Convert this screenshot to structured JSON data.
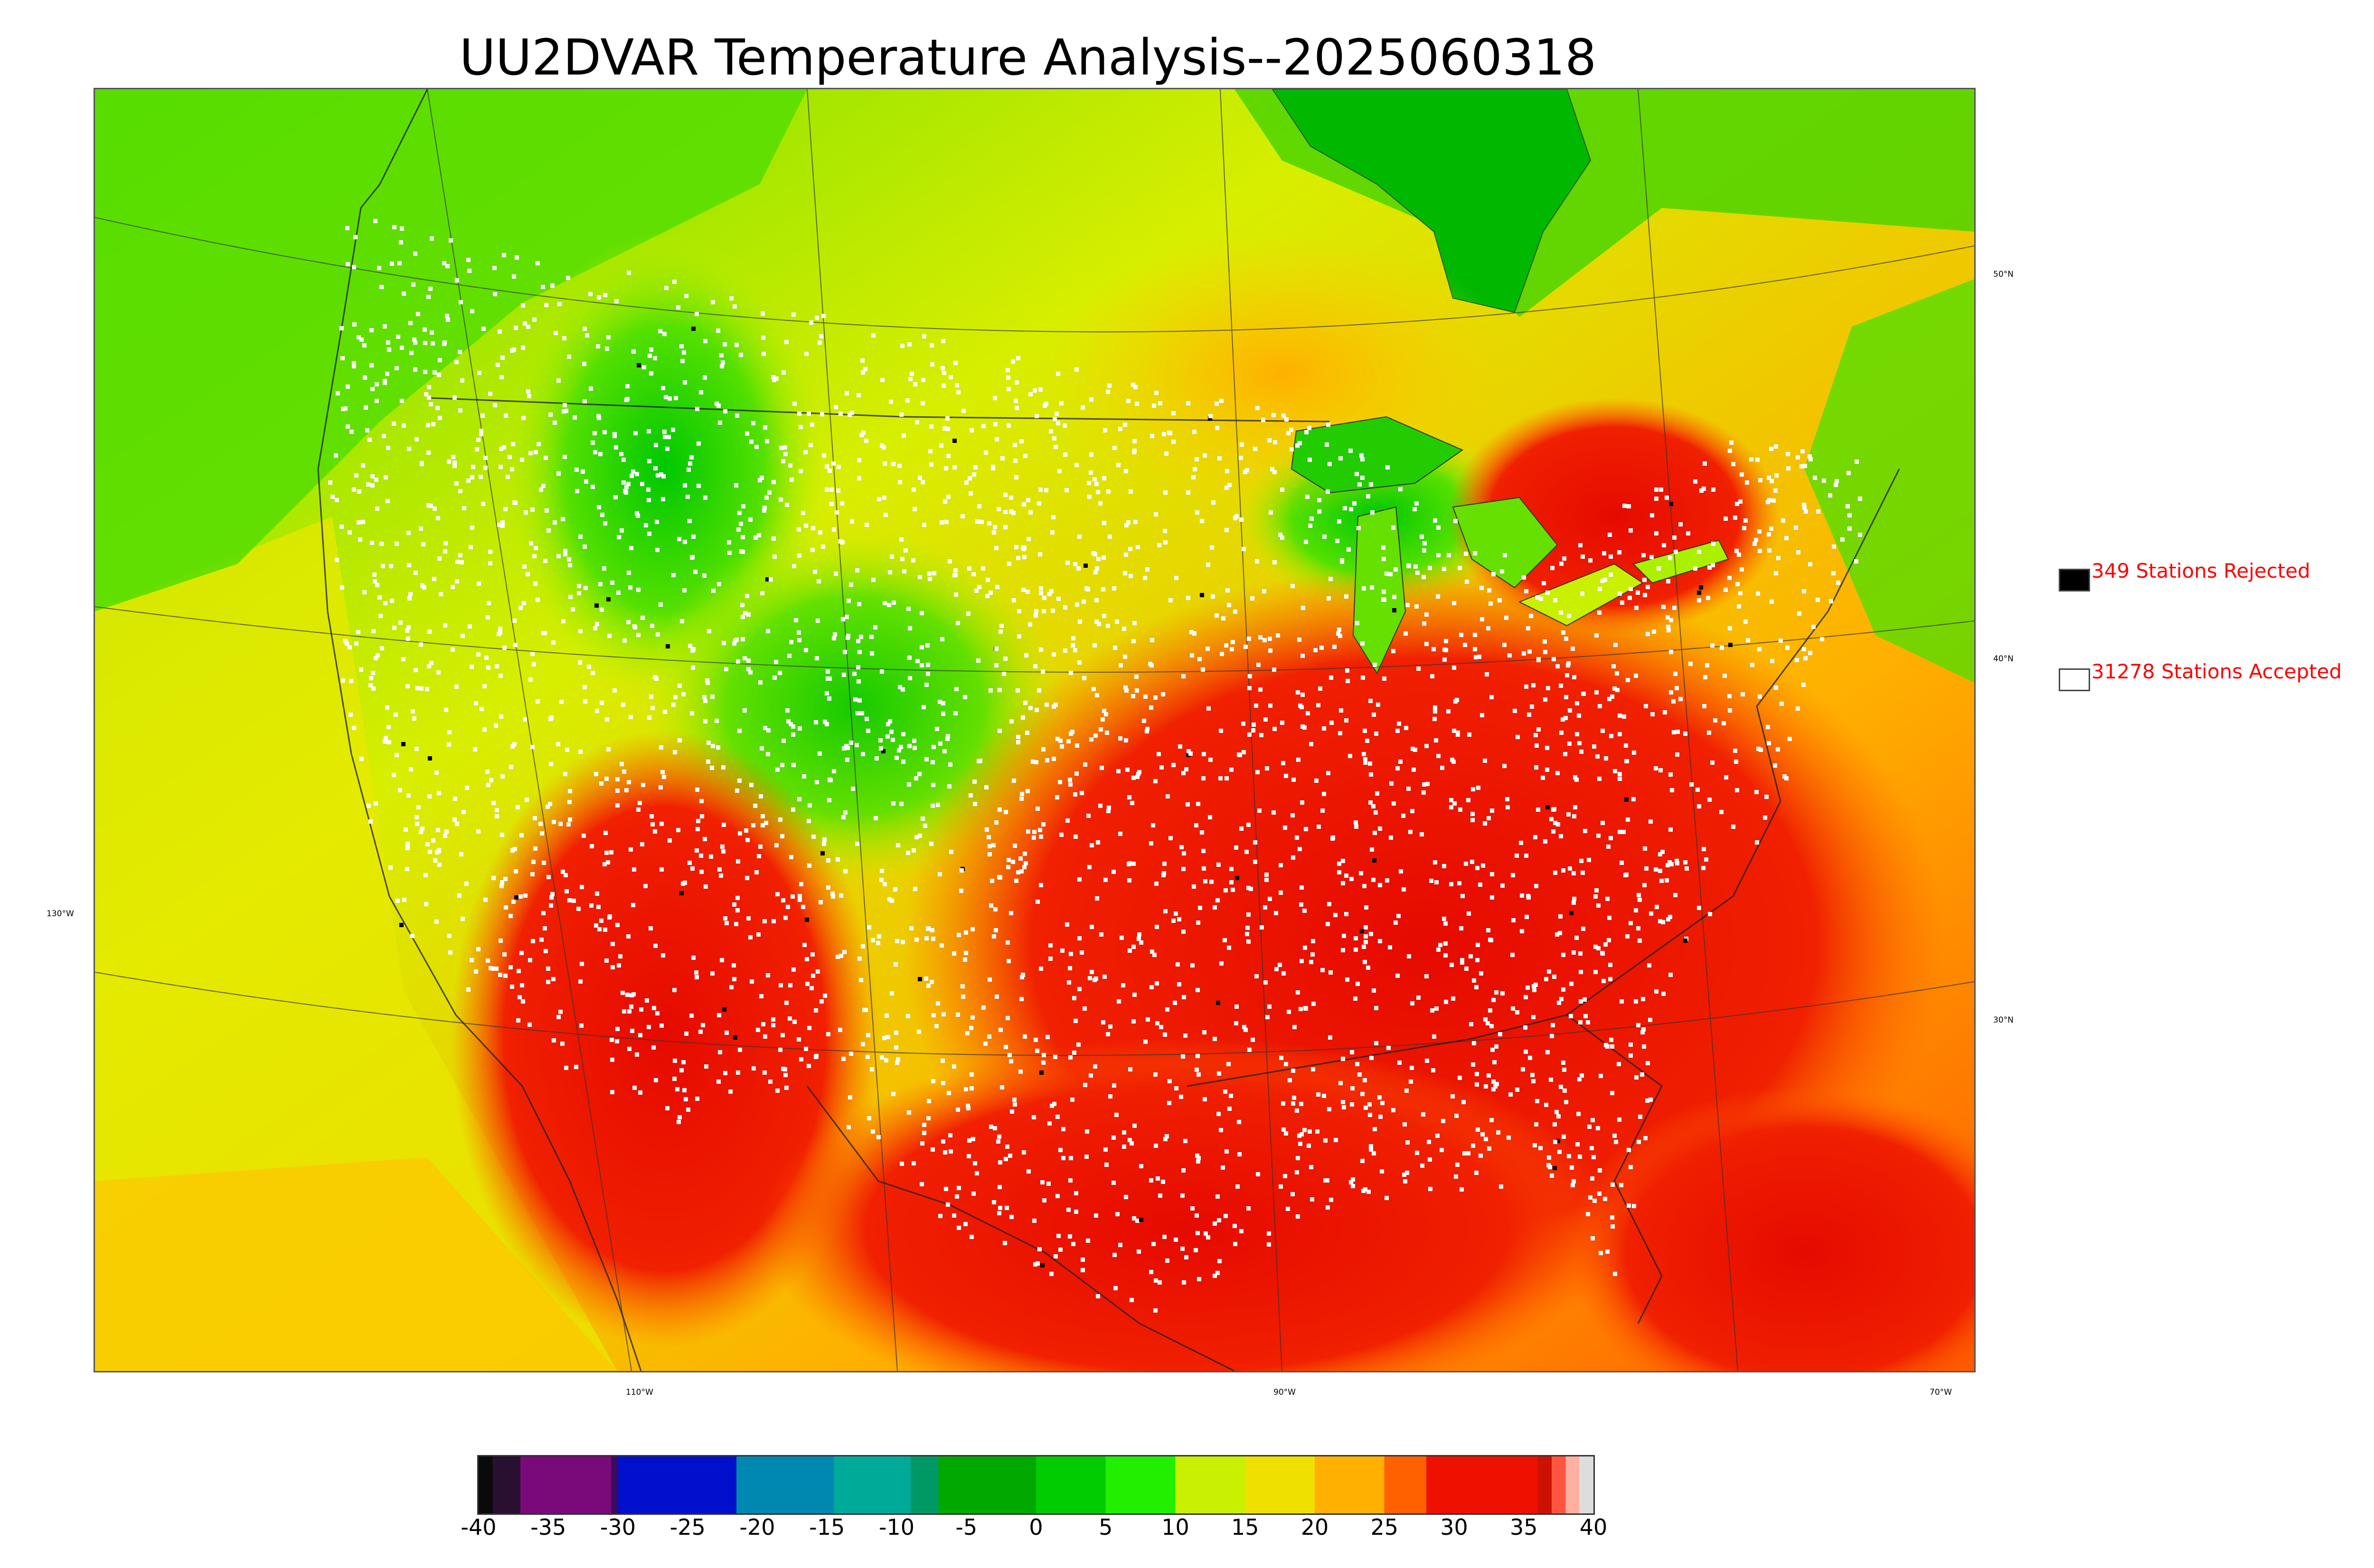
{
  "title": "UU2DVAR Temperature Analysis--2025060318",
  "map": {
    "latitude_labels": [
      "50°N",
      "40°N",
      "30°N"
    ],
    "longitude_labels": [
      "130°W",
      "110°W",
      "90°W",
      "70°W"
    ]
  },
  "legend": {
    "rejected": {
      "label": "349 Stations Rejected",
      "color": "#000000"
    },
    "accepted": {
      "label": "31278 Stations Accepted",
      "color": "#ffffff"
    },
    "text_color": "#ff0000"
  },
  "colorbar": {
    "min": -40,
    "max": 40,
    "ticks": [
      "-40",
      "-35",
      "-30",
      "-25",
      "-20",
      "-15",
      "-10",
      "-5",
      "0",
      "5",
      "10",
      "15",
      "20",
      "25",
      "30",
      "35",
      "40"
    ],
    "segments": [
      {
        "from": -40,
        "to": -39,
        "color": "#0a0a0a"
      },
      {
        "from": -39,
        "to": -37,
        "color": "#2a1030"
      },
      {
        "from": -37,
        "to": -30.5,
        "color": "#7a0a7a"
      },
      {
        "from": -30.5,
        "to": -30,
        "color": "#3a0a60"
      },
      {
        "from": -30,
        "to": -21.5,
        "color": "#0010cc"
      },
      {
        "from": -21.5,
        "to": -14.5,
        "color": "#0088b0"
      },
      {
        "from": -14.5,
        "to": -9,
        "color": "#00aa99"
      },
      {
        "from": -9,
        "to": -7,
        "color": "#009966"
      },
      {
        "from": -7,
        "to": 0,
        "color": "#00a800"
      },
      {
        "from": 0,
        "to": 5,
        "color": "#00cc00"
      },
      {
        "from": 5,
        "to": 10,
        "color": "#22ee00"
      },
      {
        "from": 10,
        "to": 15,
        "color": "#c8f000"
      },
      {
        "from": 15,
        "to": 20,
        "color": "#f0e000"
      },
      {
        "from": 20,
        "to": 25,
        "color": "#ffb000"
      },
      {
        "from": 25,
        "to": 28,
        "color": "#ff6000"
      },
      {
        "from": 28,
        "to": 36,
        "color": "#ee1100"
      },
      {
        "from": 36,
        "to": 37,
        "color": "#cc1100"
      },
      {
        "from": 37,
        "to": 38,
        "color": "#ff5540"
      },
      {
        "from": 38,
        "to": 39,
        "color": "#ffb0a0"
      },
      {
        "from": 39,
        "to": 40,
        "color": "#dddddd"
      }
    ]
  }
}
